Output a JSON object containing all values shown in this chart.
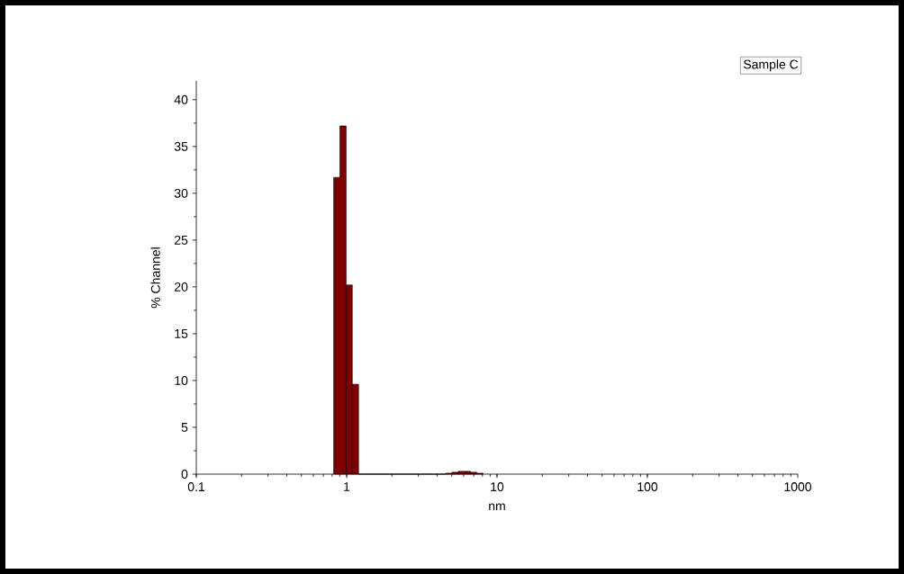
{
  "chart_data": {
    "type": "histogram",
    "xlabel": "nm",
    "ylabel": "% Channel",
    "annotations": [
      "Sample C"
    ],
    "bins": [
      0.82,
      0.902,
      0.992,
      1.09,
      1.2,
      1.32,
      1.45,
      1.6,
      1.76,
      1.93,
      2.13,
      2.34,
      2.57,
      2.83,
      3.11,
      3.42,
      3.77,
      4.14,
      4.56,
      5.01,
      5.52,
      6.07,
      6.67,
      7.34,
      8.07
    ],
    "values": [
      31.7,
      37.2,
      20.2,
      9.6,
      0,
      0,
      0,
      0,
      0,
      0,
      0,
      0,
      0,
      0,
      0,
      0,
      0,
      0,
      0.1,
      0.2,
      0.3,
      0.3,
      0.2,
      0.1
    ],
    "color": "#800000",
    "log": "x",
    "xlim": [
      0.1,
      1000
    ],
    "xticks": [
      0.1,
      1,
      10,
      100,
      1000
    ],
    "ylim": [
      0,
      42
    ],
    "yticks": [
      0,
      5,
      10,
      15,
      20,
      25,
      30,
      35,
      40
    ],
    "grid": false
  }
}
